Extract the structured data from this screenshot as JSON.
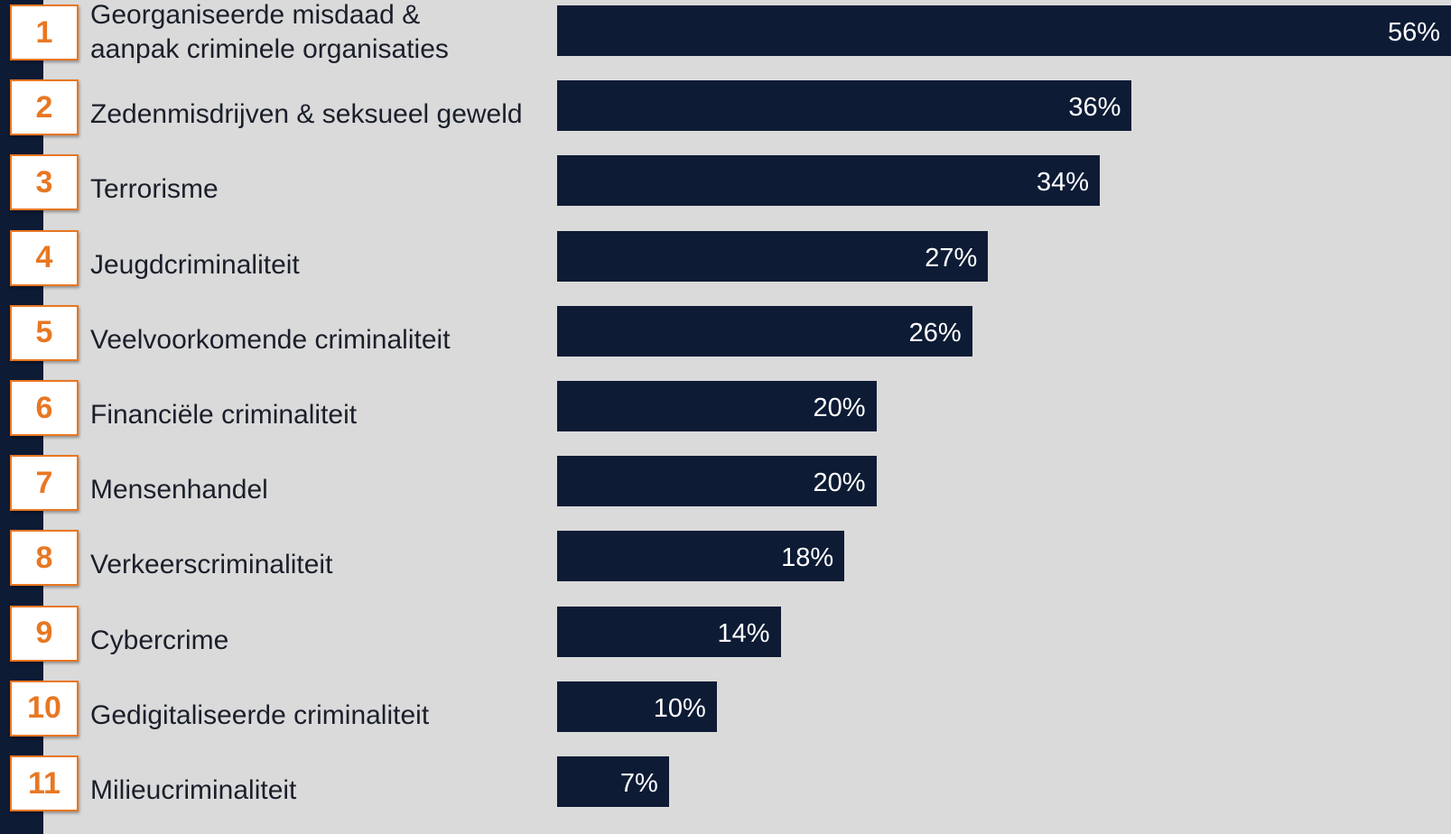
{
  "colors": {
    "background": "#dadada",
    "bar": "#0d1b35",
    "accent": "#e87722",
    "strip": "#0d1b35",
    "label_text": "#1b1f2a",
    "value_text": "#ffffff"
  },
  "chart_data": {
    "type": "bar",
    "orientation": "horizontal",
    "ranks": [
      "1",
      "2",
      "3",
      "4",
      "5",
      "6",
      "7",
      "8",
      "9",
      "10",
      "11"
    ],
    "categories": [
      "Georganiseerde misdaad &\naanpak criminele organisaties",
      "Zedenmisdrijven & seksueel geweld",
      "Terrorisme",
      "Jeugdcriminaliteit",
      "Veelvoorkomende criminaliteit",
      "Financiële criminaliteit",
      "Mensenhandel",
      "Verkeerscriminaliteit",
      "Cybercrime",
      "Gedigitaliseerde criminaliteit",
      "Milieucriminaliteit"
    ],
    "values": [
      56,
      36,
      34,
      27,
      26,
      20,
      20,
      18,
      14,
      10,
      7
    ],
    "value_labels": [
      "56%",
      "36%",
      "34%",
      "27%",
      "26%",
      "20%",
      "20%",
      "18%",
      "14%",
      "10%",
      "7%"
    ],
    "unit": "%",
    "xlim": [
      0,
      56
    ],
    "grid": false,
    "legend": "none"
  }
}
